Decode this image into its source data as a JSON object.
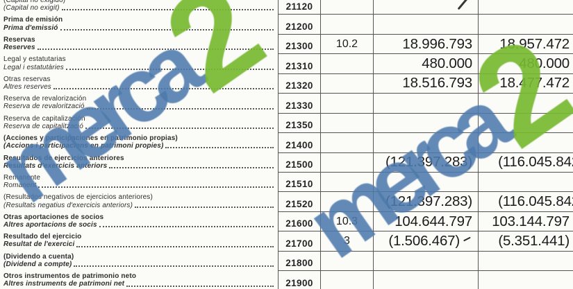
{
  "watermark": {
    "text_main": "merca",
    "text_digit": "2",
    "blue_color": "#4d7aac",
    "green_color": "#77b931"
  },
  "marks": [
    {
      "name": "handwritten-slash",
      "location": "row 21120, current-year column, top edge"
    },
    {
      "name": "handwritten-tick",
      "location": "row 21700, after value (1.506.467)"
    }
  ],
  "table": {
    "rows": [
      {
        "label_es": "(Capital no exigido)",
        "label_ca": "(Capital no exigit)",
        "bold": false,
        "code": "21120",
        "note": "",
        "current": "",
        "previous": ""
      },
      {
        "label_es": "Prima de emisión",
        "label_ca": "Prima d'emissió",
        "bold": true,
        "code": "21200",
        "note": "",
        "current": "",
        "previous": ""
      },
      {
        "label_es": "Reservas",
        "label_ca": "Reserves",
        "bold": true,
        "code": "21300",
        "note": "10.2",
        "current": "18.996.793",
        "previous": "18.957.472"
      },
      {
        "label_es": "Legal y estatutarias",
        "label_ca": "Legal i estatutàries",
        "bold": false,
        "code": "21310",
        "note": "",
        "current": "480.000",
        "previous": "480.000"
      },
      {
        "label_es": "Otras reservas",
        "label_ca": "Altres reserves",
        "bold": false,
        "code": "21320",
        "note": "",
        "current": "18.516.793",
        "previous": "18.477.472"
      },
      {
        "label_es": "Reserva de revalorización",
        "label_ca": "Reserva de revalorització",
        "bold": false,
        "code": "21330",
        "note": "",
        "current": "",
        "previous": ""
      },
      {
        "label_es": "Reserva de capitalización",
        "label_ca": "Reserva de capitalització",
        "bold": false,
        "code": "21350",
        "note": "",
        "current": "",
        "previous": ""
      },
      {
        "label_es": "(Acciones y participaciones en patrimonio propias)",
        "label_ca": "(Accions i participacions en patrimoni propies)",
        "bold": true,
        "code": "21400",
        "note": "",
        "current": "",
        "previous": ""
      },
      {
        "label_es": "Resultados de ejercicios anteriores",
        "label_ca": "Resultats d'exercicis anteriors",
        "bold": true,
        "code": "21500",
        "note": "",
        "current": "(121.397.283)",
        "previous": "(116.045.842",
        "prev_clipped": true
      },
      {
        "label_es": "Remanente",
        "label_ca": "Romanent",
        "bold": false,
        "code": "21510",
        "note": "",
        "current": "",
        "previous": ""
      },
      {
        "label_es": "(Resultados negativos de ejercicios anteriores)",
        "label_ca": "(Resultats negatius d'exercicis anteriors)",
        "bold": false,
        "code": "21520",
        "note": "",
        "current": "(121.397.283)",
        "previous": "(116.045.842",
        "prev_clipped": true
      },
      {
        "label_es": "Otras aportaciones de socios",
        "label_ca": "Altres aportacions de socis",
        "bold": true,
        "code": "21600",
        "note": "10.3",
        "current": "104.644.797",
        "previous": "103.144.797"
      },
      {
        "label_es": "Resultado del ejercicio",
        "label_ca": "Resultat de l'exercici",
        "bold": true,
        "code": "21700",
        "note": "3",
        "current": "(1.506.467)",
        "previous": "(5.351.441)",
        "tick_after_current": true
      },
      {
        "label_es": "(Dividendo a cuenta)",
        "label_ca": "(Dividend a compte)",
        "bold": true,
        "code": "21800",
        "note": "",
        "current": "",
        "previous": ""
      },
      {
        "label_es": "Otros instrumentos de patrimonio neto",
        "label_ca": "Altres instruments de patrimoni net",
        "bold": true,
        "code": "21900",
        "note": "",
        "current": "",
        "previous": ""
      }
    ]
  }
}
